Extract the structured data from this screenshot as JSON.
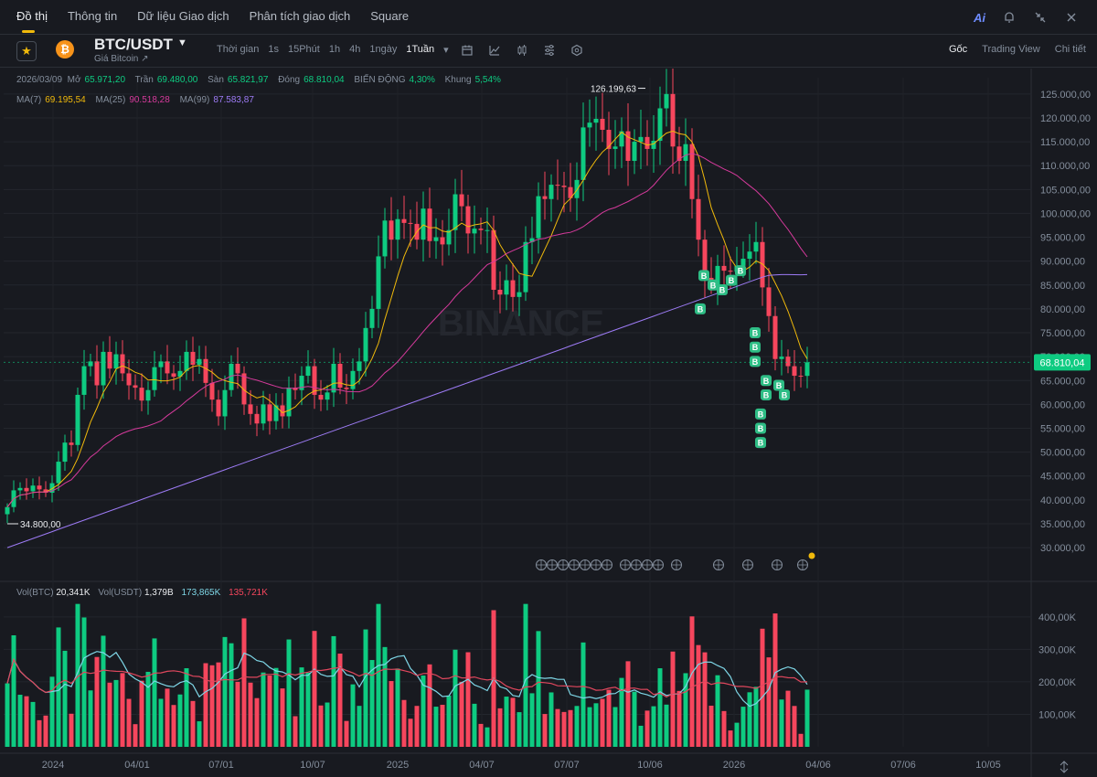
{
  "nav": {
    "tabs": [
      "Đồ thị",
      "Thông tin",
      "Dữ liệu Giao dịch",
      "Phân tích giao dịch",
      "Square"
    ],
    "active_tab": "Đồ thị",
    "ai_label": "Ai"
  },
  "header": {
    "pair": "BTC/USDT",
    "subtitle": "Giá Bitcoin ↗",
    "coin_symbol": "₿",
    "intervals": [
      "Thời gian",
      "1s",
      "15Phút",
      "1h",
      "4h",
      "1ngày",
      "1Tuần"
    ],
    "active_interval": "1Tuần",
    "view_tabs": [
      "Gốc",
      "Trading View",
      "Chi tiết"
    ],
    "active_view": "Gốc"
  },
  "ohlc": {
    "date": "2026/03/09",
    "open_label": "Mở",
    "open": "65.971,20",
    "high_label": "Trần",
    "high": "69.480,00",
    "low_label": "Sàn",
    "low": "65.821,97",
    "close_label": "Đóng",
    "close": "68.810,04",
    "change_label": "BIẾN ĐỘNG",
    "change": "4,30%",
    "range_label": "Khung",
    "range": "5,54%"
  },
  "ma": {
    "ma7_label": "MA(7)",
    "ma7": "69.195,54",
    "ma25_label": "MA(25)",
    "ma25": "90.518,28",
    "ma99_label": "MA(99)",
    "ma99": "87.583,87"
  },
  "volume": {
    "btc_label": "Vol(BTC)",
    "btc": "20,341K",
    "usdt_label": "Vol(USDT)",
    "usdt": "1,379B",
    "ma1": "173,865K",
    "ma2": "135,721K"
  },
  "price_axis": [
    "125.000,00",
    "120.000,00",
    "115.000,00",
    "110.000,00",
    "105.000,00",
    "100.000,00",
    "95.000,00",
    "90.000,00",
    "85.000,00",
    "80.000,00",
    "75.000,00",
    "70.000,00",
    "65.000,00",
    "60.000,00",
    "55.000,00",
    "50.000,00",
    "45.000,00",
    "40.000,00",
    "35.000,00",
    "30.000,00"
  ],
  "vol_axis": [
    "400,00K",
    "300,00K",
    "200,00K",
    "100,00K"
  ],
  "time_axis": [
    "2024",
    "04/01",
    "07/01",
    "10/07",
    "2025",
    "04/07",
    "07/07",
    "10/06",
    "2026",
    "04/06",
    "07/06",
    "10/05"
  ],
  "last_price": "68.810,04",
  "high_marker": "126.199,63",
  "low_marker": "34.800,00",
  "watermark": "BINANCE",
  "colors": {
    "up": "#0ecb81",
    "down": "#f6465d",
    "ma7": "#f0b90b",
    "ma25": "#d63a9c",
    "ma99": "#9d7bf5",
    "bg": "#181a20"
  },
  "chart_data": {
    "type": "candlestick",
    "interval": "1Tuần",
    "closes": [
      38500,
      42000,
      42500,
      41800,
      43000,
      42200,
      41500,
      43500,
      48000,
      52000,
      51500,
      62000,
      68000,
      69000,
      64000,
      71000,
      67500,
      70500,
      66500,
      64000,
      63500,
      60800,
      63000,
      67800,
      69000,
      66500,
      65800,
      67000,
      71000,
      68300,
      69500,
      64500,
      61000,
      57500,
      63000,
      68500,
      66500,
      60000,
      58000,
      56000,
      60000,
      56500,
      59800,
      57500,
      63500,
      63000,
      66000,
      68000,
      62000,
      61000,
      62500,
      68500,
      63500,
      63200,
      67000,
      69000,
      76000,
      80000,
      91000,
      98500,
      94500,
      98800,
      98000,
      97800,
      94500,
      101000,
      94200,
      95000,
      93500,
      96500,
      104000,
      101500,
      95800,
      96800,
      96500,
      96500,
      84000,
      83000,
      86000,
      82500,
      83500,
      94000,
      94800,
      103600,
      103000,
      106000,
      105800,
      105500,
      103200,
      107000,
      118000,
      119000,
      119800,
      117500,
      113500,
      114000,
      117200,
      111000,
      115000,
      116000,
      113500,
      115200,
      122000,
      125000,
      114000,
      111000,
      114500,
      103000,
      94500,
      86500,
      85000,
      89000,
      88000,
      87800,
      89000,
      90500,
      92000,
      94000,
      84500,
      78500,
      69500,
      70000,
      68000,
      66000,
      65971,
      68810
    ]
  }
}
